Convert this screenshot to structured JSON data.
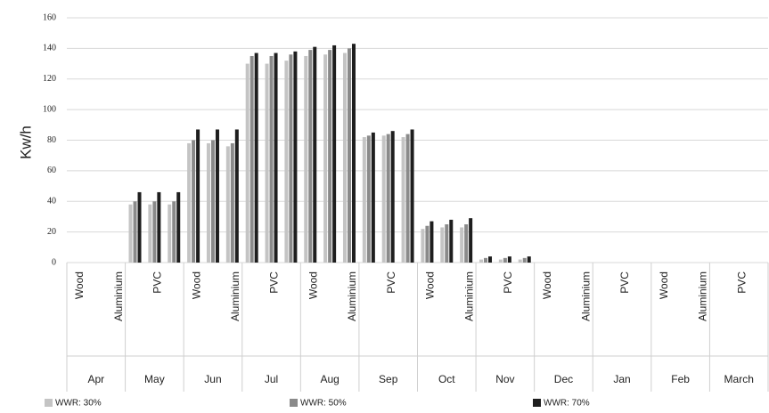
{
  "chart_data": {
    "type": "bar",
    "y_label": "Kw/h",
    "categories": [
      "Wood",
      null,
      "Aluminium",
      null,
      "PVC",
      null,
      "Wood",
      null,
      "Aluminium",
      null,
      "PVC",
      null,
      "Wood",
      null,
      "Aluminium",
      null,
      "PVC",
      null,
      "Wood",
      null,
      "Aluminium",
      null,
      "PVC",
      null,
      "Wood",
      null,
      "Aluminium",
      null,
      "PVC",
      null,
      "Wood",
      null,
      "Aluminium",
      null,
      "PVC",
      null
    ],
    "month_labels": [
      "Apr",
      "May",
      "Jun",
      "Jul",
      "Aug",
      "Sep",
      "Oct",
      "Nov",
      "Dec",
      "Jan",
      "Feb",
      "March"
    ],
    "series": [
      {
        "name": "WWR: 30%",
        "color": "#c4c4c4",
        "values": [
          0,
          0,
          0,
          38,
          38,
          38,
          78,
          78,
          76,
          130,
          130,
          132,
          135,
          136,
          137,
          82,
          83,
          82,
          22,
          23,
          23,
          2,
          2,
          2,
          0,
          0,
          0,
          0,
          0,
          0,
          0,
          0,
          0,
          0,
          0,
          0
        ]
      },
      {
        "name": "WWR: 50%",
        "color": "#8a8a8a",
        "values": [
          0,
          0,
          0,
          40,
          40,
          40,
          80,
          80,
          78,
          135,
          135,
          136,
          139,
          139,
          140,
          83,
          84,
          84,
          24,
          25,
          25,
          3,
          3,
          3,
          0,
          0,
          0,
          0,
          0,
          0,
          0,
          0,
          0,
          0,
          0,
          0
        ]
      },
      {
        "name": "WWR: 70%",
        "color": "#1e1e1e",
        "values": [
          0,
          0,
          0,
          46,
          46,
          46,
          87,
          87,
          87,
          137,
          137,
          138,
          141,
          142,
          143,
          85,
          86,
          87,
          27,
          28,
          29,
          4,
          4,
          4,
          0,
          0,
          0,
          0,
          0,
          0,
          0,
          0,
          0,
          0,
          0,
          0
        ]
      }
    ],
    "ylim": [
      0,
      160
    ],
    "yticks": [
      0,
      20,
      40,
      60,
      80,
      100,
      120,
      140,
      160
    ],
    "grid": true,
    "legend": "bottom"
  }
}
